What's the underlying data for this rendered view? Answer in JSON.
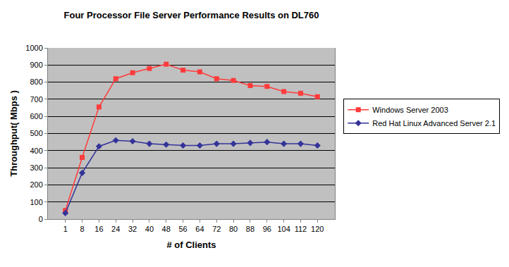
{
  "chart_data": {
    "type": "line",
    "title": "Four Processor File Server Performance Results on DL760",
    "x_label": "# of Clients",
    "y_label": "Throughput( Mbps )",
    "categories": [
      "1",
      "8",
      "16",
      "24",
      "32",
      "40",
      "48",
      "56",
      "64",
      "72",
      "80",
      "88",
      "96",
      "104",
      "112",
      "120"
    ],
    "series": [
      {
        "name": "Windows Server 2003",
        "color": "#ff3b3b",
        "marker": "square",
        "values": [
          50,
          360,
          655,
          820,
          855,
          880,
          905,
          870,
          860,
          820,
          810,
          780,
          775,
          745,
          735,
          715
        ]
      },
      {
        "name": "Red Hat Linux Advanced Server 2.1",
        "color": "#333399",
        "marker": "diamond",
        "values": [
          35,
          270,
          425,
          460,
          455,
          440,
          435,
          430,
          430,
          440,
          440,
          445,
          450,
          440,
          440,
          430
        ]
      }
    ],
    "ylim": [
      0,
      1000
    ],
    "yticks": [
      0,
      100,
      200,
      300,
      400,
      500,
      600,
      700,
      800,
      900,
      1000
    ],
    "grid": true,
    "legend": "right"
  }
}
